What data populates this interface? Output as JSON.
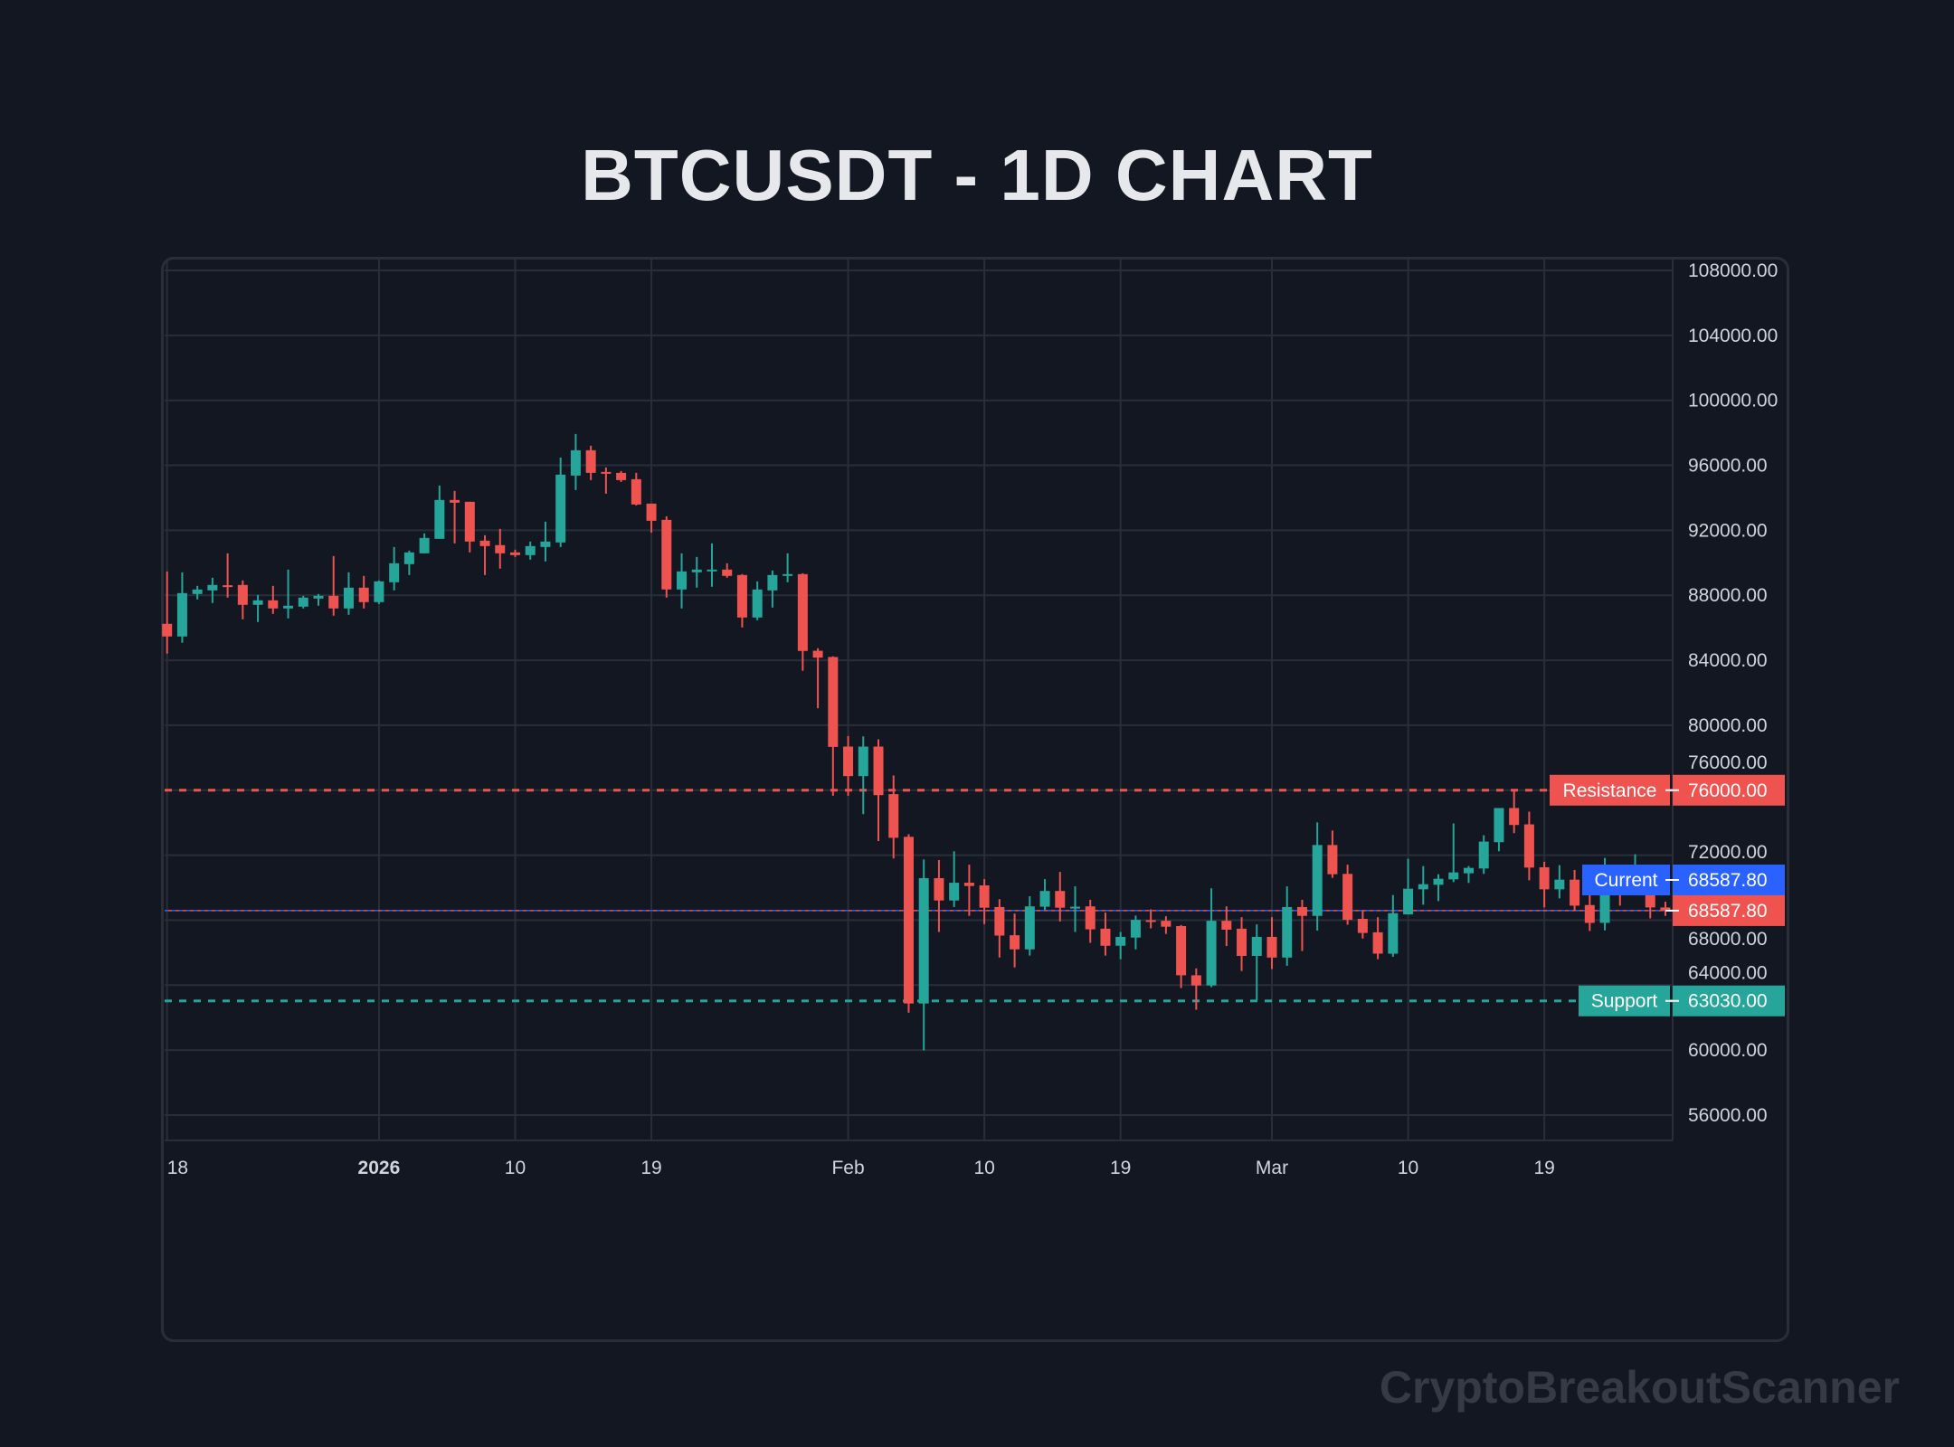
{
  "title": "BTCUSDT - 1D CHART",
  "watermark": "CryptoBreakoutScanner",
  "colors": {
    "background": "#131722",
    "grid": "#2a2e39",
    "up": "#26a69a",
    "down": "#ef5350",
    "current": "#2962ff",
    "text": "#d1d4dc"
  },
  "chart_data": {
    "type": "candlestick",
    "title": "BTCUSDT - 1D CHART",
    "ylim": [
      54400,
      108800
    ],
    "grid": true,
    "y_ticks": [
      "108000.00",
      "104000.00",
      "100000.00",
      "96000.00",
      "92000.00",
      "88000.00",
      "84000.00",
      "80000.00",
      "76000.00",
      "72000.00",
      "68000.00",
      "64000.00",
      "60000.00",
      "56000.00"
    ],
    "x_ticks": [
      {
        "label": "18",
        "date": "2025-12-18",
        "bold": false
      },
      {
        "label": "2026",
        "date": "2026-01-01",
        "bold": true
      },
      {
        "label": "10",
        "date": "2026-01-10",
        "bold": false
      },
      {
        "label": "19",
        "date": "2026-01-19",
        "bold": false
      },
      {
        "label": "Feb",
        "date": "2026-02-01",
        "bold": false
      },
      {
        "label": "10",
        "date": "2026-02-10",
        "bold": false
      },
      {
        "label": "19",
        "date": "2026-02-19",
        "bold": false
      },
      {
        "label": "Mar",
        "date": "2026-03-01",
        "bold": false
      },
      {
        "label": "10",
        "date": "2026-03-10",
        "bold": false
      },
      {
        "label": "19",
        "date": "2026-03-19",
        "bold": false
      }
    ],
    "levels": [
      {
        "name": "Resistance",
        "value": 76000,
        "label": "76000.00",
        "color": "#ef5350"
      },
      {
        "name": "Current",
        "value": 68587.8,
        "label": "68587.80",
        "color": "#2962ff"
      },
      {
        "name": "Support",
        "value": 63030,
        "label": "63030.00",
        "color": "#26a69a"
      }
    ],
    "last_price_label": "68587.80",
    "candles_ohlc_from_2025-12-18_daily": [
      [
        86243,
        89470,
        84406,
        85464
      ],
      [
        85464,
        89415,
        85074,
        88135
      ],
      [
        88079,
        88580,
        87745,
        88358
      ],
      [
        88302,
        89081,
        87523,
        88636
      ],
      [
        88618,
        90584,
        87857,
        88580
      ],
      [
        88636,
        88914,
        86521,
        87412
      ],
      [
        87412,
        88024,
        86354,
        87690
      ],
      [
        87690,
        88580,
        86855,
        87189
      ],
      [
        87189,
        89582,
        86577,
        87356
      ],
      [
        87300,
        87968,
        87189,
        87857
      ],
      [
        87801,
        88079,
        87356,
        87968
      ],
      [
        87968,
        90417,
        86744,
        87189
      ],
      [
        87189,
        89415,
        86799,
        88469
      ],
      [
        88469,
        89192,
        87189,
        87579
      ],
      [
        87579,
        88914,
        87467,
        88858
      ],
      [
        88803,
        90973,
        88302,
        89971
      ],
      [
        89916,
        90751,
        89248,
        90639
      ],
      [
        90584,
        91808,
        90584,
        91530
      ],
      [
        91474,
        94757,
        91474,
        93867
      ],
      [
        93867,
        94423,
        91196,
        93700
      ],
      [
        93756,
        93756,
        90640,
        91307
      ],
      [
        91363,
        91696,
        89248,
        91029
      ],
      [
        91085,
        92086,
        89638,
        90584
      ],
      [
        90640,
        90806,
        90361,
        90473
      ],
      [
        90473,
        91307,
        90194,
        91029
      ],
      [
        90973,
        92531,
        90083,
        91307
      ],
      [
        91252,
        96482,
        90973,
        95425
      ],
      [
        95370,
        97929,
        94479,
        96928
      ],
      [
        96928,
        97206,
        95091,
        95536
      ],
      [
        95592,
        95870,
        94257,
        95481
      ],
      [
        95536,
        95648,
        94980,
        95091
      ],
      [
        95147,
        95536,
        93533,
        93589
      ],
      [
        93645,
        93645,
        91864,
        92587
      ],
      [
        92643,
        92865,
        87857,
        88358
      ],
      [
        88358,
        90584,
        87189,
        89471
      ],
      [
        89415,
        90361,
        88469,
        89582
      ],
      [
        89527,
        91196,
        88525,
        89582
      ],
      [
        89582,
        89971,
        89081,
        89192
      ],
      [
        89248,
        89304,
        86020,
        86632
      ],
      [
        86632,
        88858,
        86466,
        88358
      ],
      [
        88302,
        89526,
        87245,
        89248
      ],
      [
        89192,
        90584,
        88803,
        89304
      ],
      [
        89304,
        89359,
        83349,
        84573
      ],
      [
        84585,
        84740,
        81050,
        84161
      ],
      [
        84201,
        84242,
        75657,
        78666
      ],
      [
        78686,
        79333,
        75657,
        76869
      ],
      [
        76869,
        79313,
        74525,
        78686
      ],
      [
        78686,
        79131,
        72869,
        75697
      ],
      [
        75758,
        76909,
        71798,
        73071
      ],
      [
        73131,
        73293,
        62305,
        62870
      ],
      [
        62870,
        71737,
        59981,
        70586
      ],
      [
        70586,
        71697,
        67274,
        69213
      ],
      [
        69213,
        72242,
        68809,
        70304
      ],
      [
        70304,
        71415,
        68264,
        70102
      ],
      [
        70142,
        70525,
        67758,
        68768
      ],
      [
        68809,
        69294,
        65698,
        67051
      ],
      [
        67071,
        68405,
        65092,
        66203
      ],
      [
        66203,
        69475,
        65819,
        68849
      ],
      [
        68829,
        70525,
        68627,
        69798
      ],
      [
        69798,
        70970,
        67920,
        68768
      ],
      [
        68809,
        70081,
        67274,
        68829
      ],
      [
        68849,
        69253,
        66607,
        67435
      ],
      [
        67475,
        68465,
        65819,
        66425
      ],
      [
        66425,
        67274,
        65597,
        66971
      ],
      [
        66930,
        68284,
        66203,
        68021
      ],
      [
        68001,
        68667,
        67496,
        67961
      ],
      [
        67961,
        68243,
        67152,
        67597
      ],
      [
        67637,
        67698,
        63819,
        64607
      ],
      [
        64607,
        65031,
        62487,
        63981
      ],
      [
        63981,
        69960,
        63880,
        67961
      ],
      [
        67961,
        68849,
        66405,
        67415
      ],
      [
        67475,
        68183,
        64870,
        65799
      ],
      [
        65799,
        67738,
        63072,
        66971
      ],
      [
        66971,
        68183,
        64991,
        65698
      ],
      [
        65698,
        70081,
        65193,
        68809
      ],
      [
        68809,
        69253,
        66102,
        68264
      ],
      [
        68264,
        74020,
        67355,
        72626
      ],
      [
        72626,
        73515,
        70606,
        70829
      ],
      [
        70849,
        71415,
        67718,
        68021
      ],
      [
        68082,
        68587,
        66870,
        67213
      ],
      [
        67253,
        68183,
        65597,
        65940
      ],
      [
        65937,
        69545,
        65751,
        68429
      ],
      [
        68355,
        71777,
        68355,
        69936
      ],
      [
        69899,
        71331,
        68950,
        70215
      ],
      [
        70178,
        70829,
        69173,
        70550
      ],
      [
        70513,
        73954,
        70345,
        70940
      ],
      [
        70885,
        71331,
        70290,
        71219
      ],
      [
        71182,
        73228,
        70847,
        72838
      ],
      [
        72800,
        74902,
        72242,
        74902
      ],
      [
        74902,
        76018,
        73358,
        73860
      ],
      [
        73897,
        74679,
        70457,
        71238
      ],
      [
        71256,
        71591,
        68783,
        69899
      ],
      [
        69899,
        71387,
        69341,
        70494
      ],
      [
        70494,
        71089,
        68559,
        68894
      ],
      [
        68931,
        69601,
        67332,
        67834
      ],
      [
        67834,
        71833,
        67369,
        70940
      ],
      [
        70940,
        71405,
        68894,
        70532
      ],
      [
        70532,
        72056,
        70532,
        71331
      ],
      [
        71331,
        71424,
        68113,
        68783
      ],
      [
        68783,
        69136,
        68262,
        68587.8
      ]
    ]
  }
}
